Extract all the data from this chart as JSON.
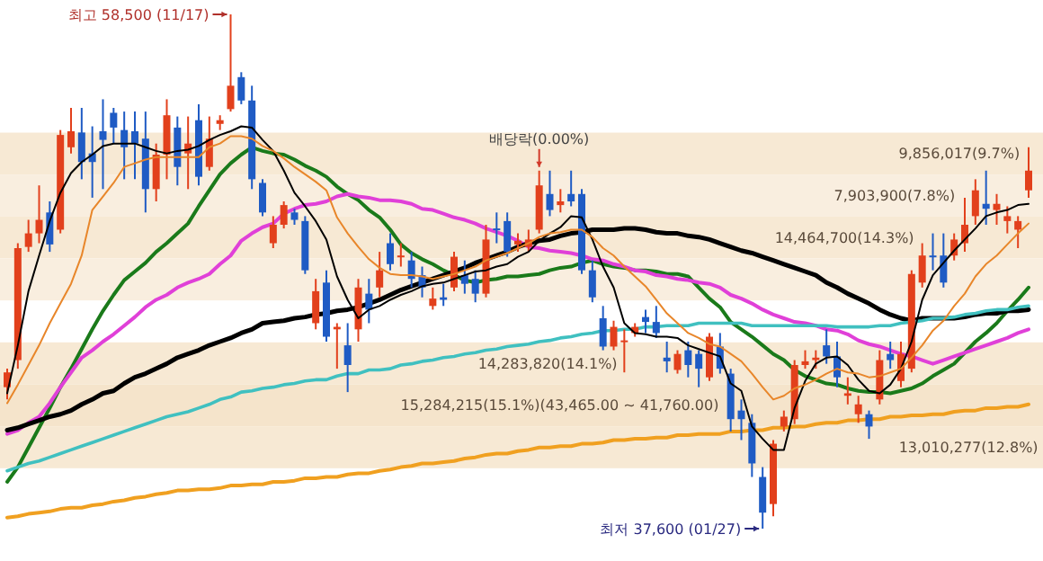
{
  "chart_data": {
    "type": "candlestick",
    "categories": [
      null,
      null,
      null,
      null,
      null,
      null,
      null,
      null,
      null,
      null,
      null,
      null,
      null,
      null,
      null,
      null,
      null,
      null,
      null,
      null,
      null,
      null,
      null,
      null,
      null,
      null,
      null,
      null,
      null,
      null,
      null,
      null,
      null,
      null,
      null,
      null,
      null,
      null,
      null,
      null,
      null,
      null,
      null,
      null,
      null,
      null,
      null,
      null,
      null,
      null,
      null,
      null,
      null,
      null,
      null,
      null,
      null,
      null,
      null,
      null,
      null,
      null,
      null,
      null,
      null,
      null,
      null,
      null,
      null,
      null,
      null,
      null,
      null,
      null,
      null,
      null,
      null,
      null,
      null,
      null,
      null,
      null,
      null,
      null,
      null,
      null,
      null,
      null,
      null,
      null,
      null,
      null,
      null,
      null,
      null,
      null,
      null
    ],
    "ohlc": [
      [
        43350,
        44100,
        42850,
        43950
      ],
      [
        44450,
        49200,
        44100,
        49000
      ],
      [
        49050,
        50150,
        48850,
        49600
      ],
      [
        49600,
        51550,
        49200,
        50150
      ],
      [
        50450,
        50900,
        48850,
        49150
      ],
      [
        49750,
        53800,
        49600,
        53600
      ],
      [
        53100,
        54700,
        52850,
        53750
      ],
      [
        53700,
        54700,
        51800,
        52500
      ],
      [
        52850,
        53950,
        51050,
        52500
      ],
      [
        53750,
        55050,
        51400,
        53400
      ],
      [
        54500,
        54700,
        53250,
        53900
      ],
      [
        53800,
        54550,
        51800,
        53100
      ],
      [
        53750,
        54550,
        51800,
        53250
      ],
      [
        53450,
        54550,
        50450,
        51400
      ],
      [
        51400,
        53250,
        50900,
        52800
      ],
      [
        52800,
        55050,
        51800,
        54400
      ],
      [
        53900,
        54350,
        51550,
        52300
      ],
      [
        52850,
        54350,
        51400,
        53250
      ],
      [
        54200,
        54850,
        51550,
        51900
      ],
      [
        52300,
        54350,
        52150,
        53450
      ],
      [
        54050,
        54400,
        53800,
        54200
      ],
      [
        54650,
        58500,
        54550,
        55600
      ],
      [
        55950,
        56150,
        54850,
        55000
      ],
      [
        55000,
        55600,
        51400,
        51800
      ],
      [
        51650,
        51800,
        50300,
        50450
      ],
      [
        49200,
        50300,
        49000,
        49950
      ],
      [
        49950,
        50900,
        49800,
        50750
      ],
      [
        50450,
        50600,
        49950,
        50150
      ],
      [
        50100,
        50300,
        47950,
        48100
      ],
      [
        45950,
        47750,
        45700,
        47250
      ],
      [
        47600,
        48100,
        45200,
        45400
      ],
      [
        45700,
        45950,
        44100,
        45800
      ],
      [
        45050,
        45950,
        43150,
        44250
      ],
      [
        45700,
        47750,
        45200,
        47400
      ],
      [
        47150,
        47750,
        45950,
        46500
      ],
      [
        47400,
        48850,
        47000,
        48100
      ],
      [
        49200,
        49600,
        48100,
        48350
      ],
      [
        48650,
        49200,
        48250,
        48700
      ],
      [
        48500,
        48850,
        47400,
        47750
      ],
      [
        47900,
        48250,
        47000,
        47400
      ],
      [
        46650,
        47400,
        46500,
        46950
      ],
      [
        47000,
        47550,
        46650,
        46900
      ],
      [
        47400,
        48850,
        47250,
        48650
      ],
      [
        47900,
        48500,
        47150,
        47550
      ],
      [
        47750,
        48100,
        46800,
        47150
      ],
      [
        47150,
        49950,
        47000,
        49350
      ],
      [
        49800,
        50450,
        49200,
        49750
      ],
      [
        50100,
        50450,
        48650,
        48850
      ],
      [
        49150,
        49600,
        48850,
        49300
      ],
      [
        49050,
        49750,
        48850,
        49350
      ],
      [
        49750,
        52150,
        49600,
        51550
      ],
      [
        51200,
        52150,
        50300,
        50550
      ],
      [
        50750,
        51400,
        50450,
        50900
      ],
      [
        51200,
        52150,
        50700,
        50900
      ],
      [
        51200,
        51400,
        47950,
        48100
      ],
      [
        48100,
        48500,
        46800,
        47000
      ],
      [
        46150,
        46650,
        44850,
        45000
      ],
      [
        45000,
        46050,
        44850,
        45800
      ],
      [
        45200,
        45700,
        43950,
        45250
      ],
      [
        45550,
        45950,
        45400,
        45800
      ],
      [
        46200,
        46500,
        45550,
        46000
      ],
      [
        46000,
        46650,
        45350,
        45550
      ],
      [
        44550,
        45200,
        43950,
        44400
      ],
      [
        44050,
        44850,
        43900,
        44700
      ],
      [
        44850,
        45200,
        43750,
        44250
      ],
      [
        44700,
        44850,
        43350,
        44100
      ],
      [
        43750,
        45550,
        43600,
        45400
      ],
      [
        45000,
        45550,
        43900,
        44100
      ],
      [
        43900,
        44100,
        41550,
        42050
      ],
      [
        42400,
        42850,
        41200,
        42050
      ],
      [
        41900,
        42250,
        39700,
        40250
      ],
      [
        39700,
        40100,
        37600,
        38250
      ],
      [
        38600,
        41200,
        38100,
        41050
      ],
      [
        41750,
        42400,
        41550,
        42150
      ],
      [
        42050,
        44450,
        41850,
        44250
      ],
      [
        44250,
        44850,
        44100,
        44400
      ],
      [
        44450,
        44850,
        44100,
        44550
      ],
      [
        45050,
        45700,
        44300,
        44600
      ],
      [
        44600,
        45200,
        43350,
        43750
      ],
      [
        43000,
        43750,
        42650,
        43100
      ],
      [
        42250,
        43000,
        41900,
        42650
      ],
      [
        42250,
        42400,
        41250,
        41750
      ],
      [
        42850,
        44850,
        42650,
        44450
      ],
      [
        44700,
        45200,
        44100,
        44450
      ],
      [
        43600,
        45200,
        43350,
        44700
      ],
      [
        44100,
        48100,
        43950,
        47950
      ],
      [
        47600,
        49200,
        47400,
        48700
      ],
      [
        48700,
        49600,
        48100,
        48650
      ],
      [
        48700,
        49600,
        47400,
        47600
      ],
      [
        48700,
        49600,
        48500,
        49350
      ],
      [
        49200,
        51050,
        48850,
        49950
      ],
      [
        50300,
        51800,
        49950,
        51350
      ],
      [
        50800,
        52150,
        49950,
        50600
      ],
      [
        50550,
        51200,
        49950,
        50800
      ],
      [
        50100,
        50700,
        49600,
        50300
      ],
      [
        49750,
        50300,
        49000,
        50100
      ],
      [
        51350,
        53100,
        51050,
        52150
      ]
    ],
    "series": [
      {
        "type": "line",
        "color": "#000000",
        "values": [
          43100,
          45050,
          47250,
          48700,
          50100,
          51250,
          52050,
          52500,
          52800,
          53150,
          53250,
          53250,
          53250,
          53100,
          52950,
          52850,
          52950,
          53000,
          53150,
          53400,
          53600,
          53750,
          53950,
          53900,
          53400,
          52950,
          52150,
          51250,
          50700,
          50100,
          49350,
          47850,
          46900,
          46150,
          46500,
          46650,
          46900,
          47100,
          47250,
          47450,
          47550,
          47600,
          47750,
          47900,
          48050,
          48100,
          48250,
          48350,
          48650,
          48850,
          49300,
          49600,
          49850,
          50300,
          50250,
          49350,
          48250,
          47400,
          45950,
          45550,
          45500,
          45400,
          45400,
          45350,
          45050,
          44900,
          44750,
          44600,
          43500,
          43200,
          41750,
          41250,
          40800,
          40800,
          42500,
          43600,
          44300,
          44550,
          44600,
          44250,
          43650,
          43200,
          43100,
          43450,
          44100,
          45200,
          46900,
          47900,
          48400,
          48900,
          49350,
          49800,
          50300,
          50450,
          50550,
          50750,
          50800
        ]
      },
      {
        "type": "line",
        "color": "#e8862a",
        "values": [
          42700,
          43450,
          44250,
          45050,
          45950,
          46750,
          47550,
          48700,
          50550,
          51100,
          51650,
          52300,
          52450,
          52600,
          52700,
          52700,
          52700,
          52700,
          52700,
          53100,
          53250,
          53550,
          53550,
          53450,
          53150,
          52950,
          52650,
          52300,
          52000,
          51700,
          51350,
          50250,
          49600,
          49050,
          48550,
          48200,
          47950,
          47900,
          47900,
          47850,
          47750,
          47850,
          47950,
          48100,
          48250,
          48500,
          48650,
          48800,
          49000,
          49200,
          49450,
          49600,
          49650,
          49750,
          49750,
          49450,
          49000,
          48700,
          48250,
          47850,
          47450,
          46900,
          46350,
          45950,
          45550,
          45350,
          45100,
          45000,
          44700,
          44400,
          43900,
          43350,
          42850,
          43000,
          43300,
          43450,
          43650,
          43900,
          44100,
          43950,
          43900,
          43750,
          43800,
          43950,
          44100,
          44550,
          45050,
          45650,
          46050,
          46650,
          47150,
          47850,
          48350,
          48700,
          49150,
          49600,
          50000
        ]
      },
      {
        "type": "line",
        "color": "#1a7a1a",
        "values": [
          39500,
          40100,
          40900,
          41700,
          42500,
          43350,
          44100,
          44900,
          45700,
          46450,
          47100,
          47700,
          48050,
          48400,
          48850,
          49200,
          49600,
          50000,
          50700,
          51350,
          52000,
          52450,
          52800,
          53100,
          52950,
          52850,
          52800,
          52600,
          52350,
          52150,
          51900,
          51500,
          51200,
          50950,
          50550,
          50250,
          49750,
          49150,
          48800,
          48550,
          48350,
          48100,
          47900,
          47700,
          47600,
          47700,
          47750,
          47850,
          47850,
          47900,
          47950,
          48100,
          48200,
          48250,
          48400,
          48500,
          48350,
          48250,
          48200,
          48100,
          48100,
          48050,
          47950,
          47950,
          47850,
          47400,
          46950,
          46600,
          46000,
          45700,
          45400,
          45050,
          44700,
          44450,
          44050,
          43800,
          43650,
          43500,
          43450,
          43300,
          43200,
          43150,
          43150,
          43100,
          43200,
          43300,
          43500,
          43800,
          44050,
          44300,
          44750,
          45200,
          45550,
          45950,
          46450,
          46900,
          47400
        ]
      },
      {
        "type": "line",
        "color": "#e040d8",
        "values": [
          41450,
          41600,
          41900,
          42150,
          42700,
          43350,
          43950,
          44550,
          44850,
          45200,
          45500,
          45850,
          46200,
          46600,
          46900,
          47100,
          47400,
          47600,
          47750,
          47950,
          48350,
          48700,
          49300,
          49600,
          49850,
          50000,
          50400,
          50600,
          50750,
          50800,
          50900,
          51100,
          51200,
          51100,
          51050,
          50950,
          50950,
          50900,
          50800,
          50600,
          50550,
          50400,
          50250,
          50150,
          50000,
          49800,
          49650,
          49500,
          49300,
          49050,
          49000,
          48900,
          48850,
          48800,
          48700,
          48550,
          48500,
          48350,
          48250,
          48100,
          48050,
          47900,
          47850,
          47750,
          47700,
          47600,
          47550,
          47400,
          47100,
          46950,
          46750,
          46500,
          46300,
          46150,
          46000,
          45950,
          45850,
          45700,
          45650,
          45500,
          45250,
          45100,
          45000,
          44850,
          44700,
          44600,
          44450,
          44300,
          44450,
          44600,
          44750,
          44900,
          45050,
          45200,
          45350,
          45550,
          45700
        ]
      },
      {
        "type": "line",
        "color": "#000000",
        "values": [
          41600,
          41700,
          41850,
          42000,
          42150,
          42250,
          42400,
          42650,
          42850,
          43100,
          43200,
          43500,
          43750,
          43900,
          44100,
          44300,
          44550,
          44700,
          44850,
          45050,
          45200,
          45350,
          45550,
          45700,
          45950,
          46000,
          46050,
          46150,
          46200,
          46300,
          46350,
          46450,
          46500,
          46600,
          46750,
          46900,
          47100,
          47300,
          47450,
          47600,
          47750,
          47900,
          48050,
          48200,
          48400,
          48550,
          48700,
          48850,
          49050,
          49200,
          49300,
          49350,
          49500,
          49600,
          49650,
          49750,
          49750,
          49750,
          49800,
          49800,
          49750,
          49650,
          49600,
          49600,
          49500,
          49450,
          49350,
          49200,
          49050,
          48900,
          48800,
          48650,
          48500,
          48350,
          48200,
          48050,
          47900,
          47600,
          47400,
          47150,
          46950,
          46750,
          46500,
          46300,
          46150,
          46050,
          46150,
          46150,
          46150,
          46150,
          46200,
          46300,
          46350,
          46350,
          46450,
          46450,
          46500
        ]
      },
      {
        "type": "line",
        "color": "#40c0c0",
        "values": [
          39950,
          40100,
          40250,
          40350,
          40500,
          40650,
          40800,
          40950,
          41100,
          41250,
          41400,
          41550,
          41700,
          41850,
          42000,
          42150,
          42250,
          42350,
          42500,
          42650,
          42850,
          42950,
          43150,
          43200,
          43300,
          43350,
          43450,
          43500,
          43600,
          43650,
          43650,
          43800,
          43900,
          43900,
          44050,
          44050,
          44100,
          44250,
          44300,
          44400,
          44450,
          44550,
          44600,
          44700,
          44750,
          44850,
          44900,
          45000,
          45050,
          45100,
          45200,
          45250,
          45350,
          45400,
          45500,
          45550,
          45650,
          45650,
          45700,
          45700,
          45800,
          45800,
          45850,
          45850,
          45850,
          45950,
          45950,
          45950,
          45950,
          45950,
          45850,
          45850,
          45850,
          45850,
          45850,
          45850,
          45850,
          45850,
          45800,
          45800,
          45800,
          45800,
          45850,
          45850,
          45950,
          46000,
          46050,
          46150,
          46150,
          46200,
          46300,
          46350,
          46450,
          46500,
          46500,
          46600,
          46650
        ]
      },
      {
        "type": "line",
        "color": "#f0a020",
        "values": [
          38050,
          38100,
          38200,
          38250,
          38300,
          38400,
          38450,
          38450,
          38550,
          38600,
          38700,
          38750,
          38850,
          38900,
          39000,
          39050,
          39150,
          39150,
          39200,
          39200,
          39250,
          39350,
          39350,
          39400,
          39400,
          39500,
          39500,
          39550,
          39650,
          39650,
          39700,
          39700,
          39800,
          39850,
          39850,
          39950,
          40000,
          40100,
          40150,
          40250,
          40250,
          40300,
          40350,
          40450,
          40500,
          40600,
          40650,
          40650,
          40750,
          40800,
          40900,
          40900,
          40950,
          40950,
          41050,
          41050,
          41100,
          41200,
          41200,
          41250,
          41250,
          41300,
          41300,
          41400,
          41400,
          41450,
          41450,
          41450,
          41550,
          41550,
          41600,
          41600,
          41700,
          41700,
          41750,
          41750,
          41850,
          41900,
          41900,
          42000,
          42000,
          42050,
          42050,
          42150,
          42150,
          42200,
          42200,
          42250,
          42250,
          42350,
          42400,
          42400,
          42500,
          42500,
          42550,
          42550,
          42650
        ]
      }
    ],
    "bands": [
      {
        "axis": "y",
        "from": 51990,
        "to": 53695,
        "label": "9,856,017(9.7%)",
        "color": "#f7e9d4"
      },
      {
        "axis": "y",
        "from": 50285,
        "to": 51990,
        "label": "7,903,900(7.8%)",
        "color": "#f9eedf"
      },
      {
        "axis": "y",
        "from": 48580,
        "to": 50285,
        "label": "14,464,700(14.3%)",
        "color": "#f7e9d4"
      },
      {
        "axis": "y",
        "from": 46875,
        "to": 48580,
        "color": "#f9eedf"
      },
      {
        "axis": "y",
        "from": 43465,
        "to": 45170,
        "label": "14,283,820(14.1%)",
        "color": "#f7e9d4"
      },
      {
        "axis": "y",
        "from": 41760,
        "to": 43465,
        "label": "15,284,215(15.1%)(43,465.00 ~ 41,760.00)",
        "color": "#f5e4cb"
      },
      {
        "axis": "y",
        "from": 40055,
        "to": 41760,
        "label": "13,010,277(12.8%)",
        "color": "#f7e9d4"
      }
    ],
    "annotations": [
      "최고 58,500 (11/17)",
      "최저 37,600 (01/27)",
      {
        "text": "배당락(0.00%)",
        "y": 52150
      }
    ]
  }
}
